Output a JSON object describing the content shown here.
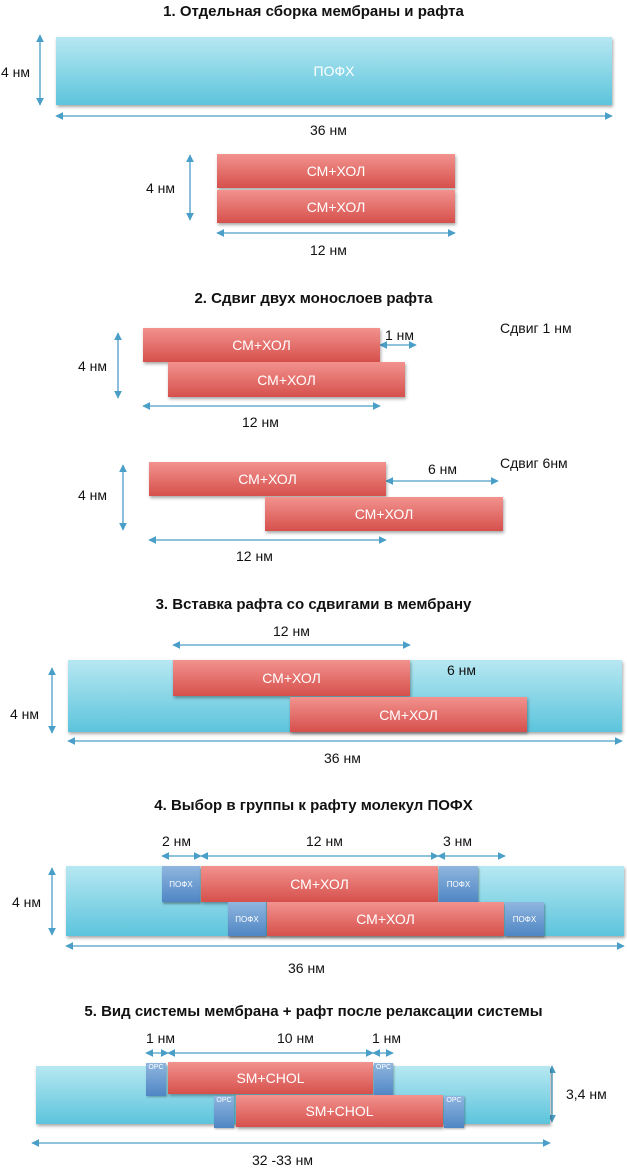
{
  "s1": {
    "title": "1. Отдельная сборка мембраны и рафта",
    "membrane_label": "ПОФХ",
    "h_label": "4 нм",
    "w_label": "36 нм",
    "raft_top": "СМ+ХОЛ",
    "raft_bottom": "СМ+ХОЛ",
    "raft_h_label": "4 нм",
    "raft_w_label": "12 нм"
  },
  "s2": {
    "title": "2. Сдвиг двух монослоев рафта",
    "a_top": "СМ+ХОЛ",
    "a_bottom": "СМ+ХОЛ",
    "a_h": "4 нм",
    "a_w": "12 нм",
    "a_shift": "1 нм",
    "a_caption": "Сдвиг 1 нм",
    "b_top": "СМ+ХОЛ",
    "b_bottom": "СМ+ХОЛ",
    "b_h": "4 нм",
    "b_w": "12 нм",
    "b_shift": "6 нм",
    "b_caption": "Сдвиг 6нм"
  },
  "s3": {
    "title": "3. Вставка рафта со сдвигами в мембрану",
    "top_w": "12 нм",
    "shift": "6 нм",
    "raft_top": "СМ+ХОЛ",
    "raft_bottom": "СМ+ХОЛ",
    "h": "4 нм",
    "w": "36 нм"
  },
  "s4": {
    "title": "4. Выбор в группы к рафту молекул ПОФХ",
    "left_gap": "2 нм",
    "mid_w": "12 нм",
    "right_gap": "3 нм",
    "raft_top": "СМ+ХОЛ",
    "raft_bottom": "СМ+ХОЛ",
    "pofx": "ПОФХ",
    "h": "4 нм",
    "w": "36 нм"
  },
  "s5": {
    "title": "5. Вид системы мембрана + рафт после релаксации системы",
    "left_gap": "1 нм",
    "mid_w": "10 нм",
    "right_gap": "1 нм",
    "raft_top": "SM+CHOL",
    "raft_bottom": "SM+CHOL",
    "opc": "OPC",
    "h": "3,4 нм",
    "w": "32 -33 нм"
  },
  "colors": {
    "membrane": "#5cc4dc",
    "raft": "#d6504c",
    "pofx": "#4f86c4",
    "arrow": "#4a9fc8"
  }
}
